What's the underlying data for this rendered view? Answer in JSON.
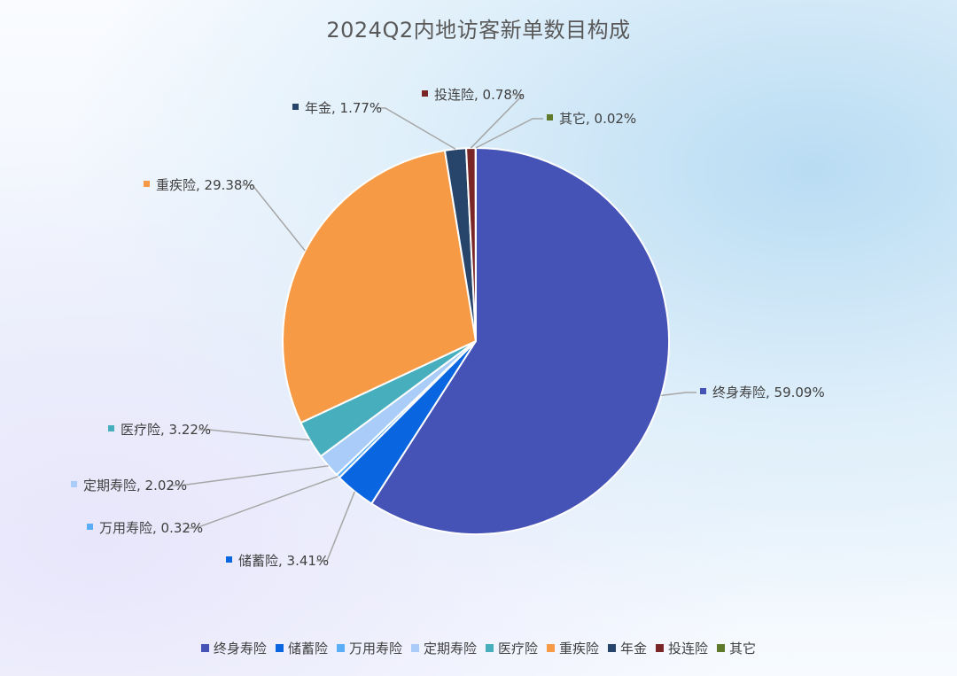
{
  "chart_data": {
    "type": "pie",
    "title": "2024Q2内地访客新单数目构成",
    "legend_position": "bottom",
    "start_angle_deg": 0,
    "direction": "clockwise",
    "slices": [
      {
        "name": "终身寿险",
        "value": 59.09,
        "label": "终身寿险, 59.09%",
        "color": "#4653b6"
      },
      {
        "name": "储蓄险",
        "value": 3.41,
        "label": "储蓄险, 3.41%",
        "color": "#0a66e0"
      },
      {
        "name": "万用寿险",
        "value": 0.32,
        "label": "万用寿险, 0.32%",
        "color": "#5aaef5"
      },
      {
        "name": "定期寿险",
        "value": 2.02,
        "label": "定期寿险, 2.02%",
        "color": "#a9cdf8"
      },
      {
        "name": "医疗险",
        "value": 3.22,
        "label": "医疗险, 3.22%",
        "color": "#47aebe"
      },
      {
        "name": "重疾险",
        "value": 29.38,
        "label": "重疾险, 29.38%",
        "color": "#f79a45"
      },
      {
        "name": "年金",
        "value": 1.77,
        "label": "年金, 1.77%",
        "color": "#27446b"
      },
      {
        "name": "投连险",
        "value": 0.78,
        "label": "投连险, 0.78%",
        "color": "#7a2626"
      },
      {
        "name": "其它",
        "value": 0.02,
        "label": "其它, 0.02%",
        "color": "#5f7a2a"
      }
    ]
  }
}
